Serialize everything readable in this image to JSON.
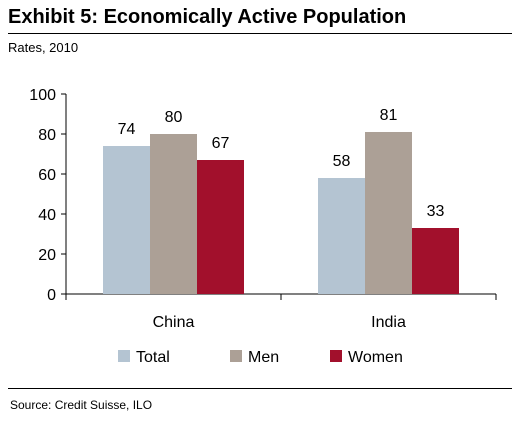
{
  "header": {
    "title": "Exhibit 5: Economically Active Population",
    "subtitle": "Rates, 2010"
  },
  "footer": {
    "source": "Source: Credit Suisse, ILO"
  },
  "chart_data": {
    "type": "bar",
    "categories": [
      "China",
      "India"
    ],
    "series": [
      {
        "name": "Total",
        "values": [
          74,
          58
        ],
        "color": "#b4c4d2"
      },
      {
        "name": "Men",
        "values": [
          80,
          81
        ],
        "color": "#aca096"
      },
      {
        "name": "Women",
        "values": [
          67,
          33
        ],
        "color": "#a2102c"
      }
    ],
    "ylim": [
      0,
      100
    ],
    "yticks": [
      0,
      20,
      40,
      60,
      80,
      100
    ],
    "grid": false,
    "legend": "bottom",
    "data_labels": true
  }
}
